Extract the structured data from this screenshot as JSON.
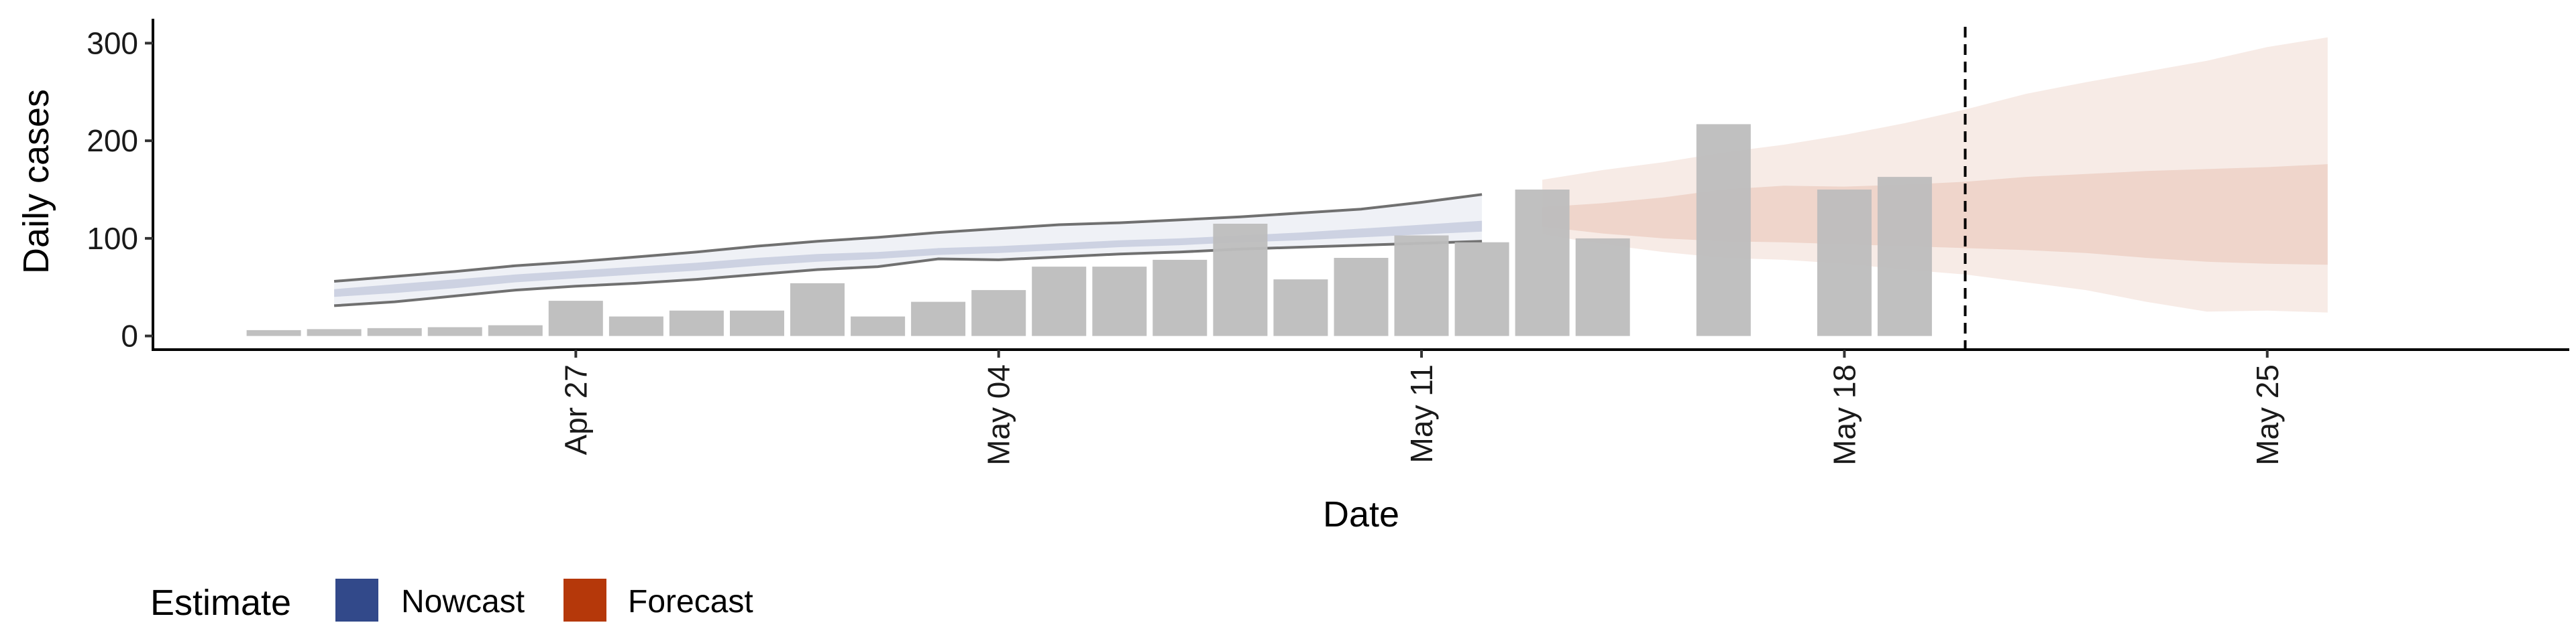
{
  "chart_data": {
    "type": "bar",
    "xlabel": "Date",
    "ylabel": "Daily cases",
    "x_ticks": [
      "2020-04-27",
      "2020-05-04",
      "2020-05-11",
      "2020-05-18",
      "2020-05-25"
    ],
    "x_tick_labels": [
      "Apr 27",
      "May 04",
      "May 11",
      "May 18",
      "May 25"
    ],
    "y_ticks": [
      0,
      100,
      200,
      300
    ],
    "ylim": [
      -14,
      325
    ],
    "xlim": [
      "2020-04-20",
      "2020-05-30"
    ],
    "grid": false,
    "legend": {
      "title": "Estimate",
      "position": "bottom-left",
      "entries": [
        {
          "label": "Nowcast",
          "color": "#32498a"
        },
        {
          "label": "Forecast",
          "color": "#b5380a"
        }
      ]
    },
    "reference_line": {
      "date": "2020-05-20",
      "style": "dashed"
    },
    "bars": {
      "name": "Daily cases",
      "color": "#bdbdbd",
      "dates": [
        "2020-04-22",
        "2020-04-23",
        "2020-04-24",
        "2020-04-25",
        "2020-04-26",
        "2020-04-27",
        "2020-04-28",
        "2020-04-29",
        "2020-04-30",
        "2020-05-01",
        "2020-05-02",
        "2020-05-03",
        "2020-05-04",
        "2020-05-05",
        "2020-05-06",
        "2020-05-07",
        "2020-05-08",
        "2020-05-09",
        "2020-05-10",
        "2020-05-11",
        "2020-05-12",
        "2020-05-13",
        "2020-05-14",
        "2020-05-15",
        "2020-05-16",
        "2020-05-17",
        "2020-05-18",
        "2020-05-19",
        "2020-05-20"
      ],
      "values": [
        6,
        7,
        8,
        9,
        11,
        36,
        20,
        26,
        26,
        54,
        20,
        35,
        47,
        71,
        71,
        78,
        115,
        58,
        80,
        103,
        96,
        150,
        100,
        null,
        217,
        null,
        150,
        163,
        null
      ]
    },
    "nowcast": {
      "name": "Nowcast",
      "color": "#32498a",
      "dates": [
        "2020-04-23",
        "2020-04-24",
        "2020-04-25",
        "2020-04-26",
        "2020-04-27",
        "2020-04-28",
        "2020-04-29",
        "2020-04-30",
        "2020-05-01",
        "2020-05-02",
        "2020-05-03",
        "2020-05-04",
        "2020-05-05",
        "2020-05-06",
        "2020-05-07",
        "2020-05-08",
        "2020-05-09",
        "2020-05-10",
        "2020-05-11",
        "2020-05-12"
      ],
      "lower90": [
        31,
        35,
        41,
        47,
        51,
        54,
        58,
        63,
        68,
        71,
        79,
        78,
        81,
        84,
        86,
        89,
        91,
        93,
        95,
        97
      ],
      "lower50": [
        40,
        44,
        49,
        55,
        59,
        63,
        67,
        72,
        76,
        79,
        83,
        85,
        88,
        91,
        93,
        96,
        98,
        101,
        104,
        107
      ],
      "upper50": [
        48,
        53,
        58,
        63,
        67,
        71,
        75,
        80,
        84,
        86,
        90,
        92,
        95,
        98,
        100,
        103,
        106,
        110,
        114,
        118
      ],
      "upper90": [
        56,
        61,
        66,
        72,
        76,
        81,
        86,
        92,
        97,
        101,
        106,
        110,
        114,
        116,
        119,
        122,
        126,
        130,
        137,
        145
      ]
    },
    "forecast": {
      "name": "Forecast",
      "color": "#b5380a",
      "dates": [
        "2020-05-13",
        "2020-05-14",
        "2020-05-15",
        "2020-05-16",
        "2020-05-17",
        "2020-05-18",
        "2020-05-19",
        "2020-05-20",
        "2020-05-21",
        "2020-05-22",
        "2020-05-23",
        "2020-05-24",
        "2020-05-25",
        "2020-05-26"
      ],
      "lower90": [
        104,
        94,
        86,
        80,
        78,
        74,
        68,
        63,
        55,
        47,
        35,
        25,
        26,
        24
      ],
      "lower50": [
        112,
        105,
        100,
        97,
        96,
        94,
        92,
        90,
        88,
        85,
        80,
        76,
        74,
        73
      ],
      "upper50": [
        132,
        136,
        142,
        150,
        154,
        153,
        155,
        158,
        163,
        166,
        169,
        171,
        173,
        176
      ],
      "upper90": [
        160,
        170,
        178,
        188,
        196,
        206,
        218,
        232,
        248,
        260,
        271,
        282,
        296,
        306
      ]
    }
  }
}
